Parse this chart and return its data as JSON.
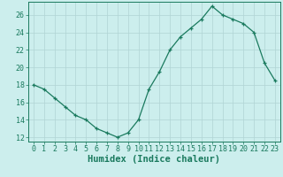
{
  "x": [
    0,
    1,
    2,
    3,
    4,
    5,
    6,
    7,
    8,
    9,
    10,
    11,
    12,
    13,
    14,
    15,
    16,
    17,
    18,
    19,
    20,
    21,
    22,
    23
  ],
  "y": [
    18,
    17.5,
    16.5,
    15.5,
    14.5,
    14,
    13,
    12.5,
    12,
    12.5,
    14,
    17.5,
    19.5,
    22,
    23.5,
    24.5,
    25.5,
    27,
    26,
    25.5,
    25,
    24,
    20.5,
    18.5
  ],
  "xlabel": "Humidex (Indice chaleur)",
  "ylabel": "",
  "xlim": [
    -0.5,
    23.5
  ],
  "ylim": [
    11.5,
    27.5
  ],
  "yticks": [
    12,
    14,
    16,
    18,
    20,
    22,
    24,
    26
  ],
  "xtick_labels": [
    "0",
    "1",
    "2",
    "3",
    "4",
    "5",
    "6",
    "7",
    "8",
    "9",
    "10",
    "11",
    "12",
    "13",
    "14",
    "15",
    "16",
    "17",
    "18",
    "19",
    "20",
    "21",
    "22",
    "23"
  ],
  "line_color": "#1a7a5e",
  "marker": "+",
  "bg_color": "#cceeed",
  "grid_color": "#b0d4d4",
  "label_fontsize": 7.5,
  "tick_fontsize": 6.0
}
